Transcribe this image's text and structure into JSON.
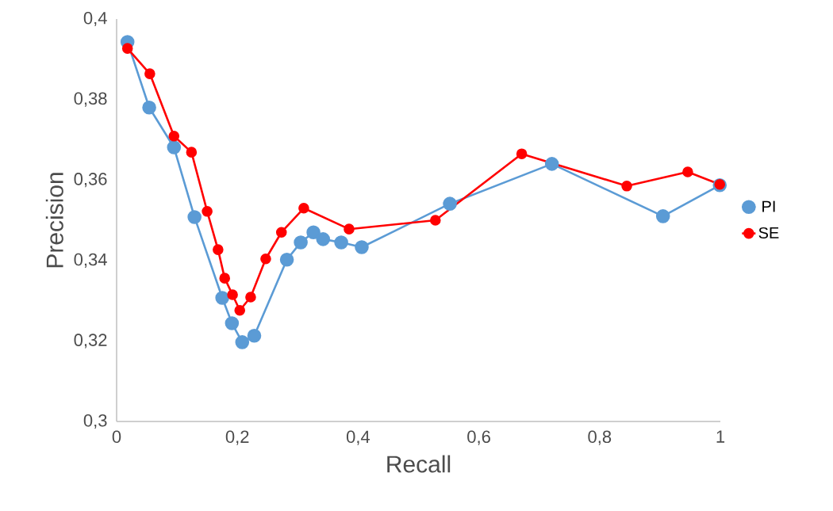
{
  "chart_data": {
    "type": "line",
    "xlabel": "Recall",
    "ylabel": "Precision",
    "xlim": [
      0,
      1
    ],
    "ylim": [
      0.3,
      0.4
    ],
    "xticks": [
      0,
      {
        "value": 0.2,
        "label": "0,2"
      },
      {
        "value": 0.4,
        "label": "0,4"
      },
      {
        "value": 0.6,
        "label": "0,6"
      },
      {
        "value": 0.8,
        "label": "0,8"
      },
      1
    ],
    "yticks": [
      {
        "value": 0.3,
        "label": "0,3"
      },
      {
        "value": 0.32,
        "label": "0,32"
      },
      {
        "value": 0.34,
        "label": "0,34"
      },
      {
        "value": 0.36,
        "label": "0,36"
      },
      {
        "value": 0.38,
        "label": "0,38"
      },
      {
        "value": 0.4,
        "label": "0,4"
      }
    ],
    "grid": false,
    "legend": "right",
    "marker": "circle",
    "line_style": "solid",
    "series": [
      {
        "name": "PI",
        "color": "#5b9bd5",
        "x": [
          0.018,
          0.054,
          0.095,
          0.129,
          0.175,
          0.191,
          0.208,
          0.228,
          0.282,
          0.305,
          0.326,
          0.342,
          0.372,
          0.406,
          0.552,
          0.721,
          0.905,
          0.999
        ],
        "values": [
          0.3943,
          0.378,
          0.3681,
          0.3508,
          0.3307,
          0.3244,
          0.3197,
          0.3213,
          0.3402,
          0.3445,
          0.347,
          0.3453,
          0.3445,
          0.3433,
          0.3541,
          0.364,
          0.351,
          0.3587
        ]
      },
      {
        "name": "SE",
        "color": "#ff0000",
        "x": [
          0.018,
          0.055,
          0.095,
          0.124,
          0.15,
          0.168,
          0.179,
          0.192,
          0.204,
          0.222,
          0.247,
          0.273,
          0.31,
          0.385,
          0.528,
          0.671,
          0.845,
          0.946,
          0.999
        ],
        "values": [
          0.3927,
          0.3864,
          0.3709,
          0.3669,
          0.3522,
          0.3427,
          0.3356,
          0.3315,
          0.3276,
          0.3309,
          0.3404,
          0.347,
          0.353,
          0.3478,
          0.35,
          0.3665,
          0.3585,
          0.362,
          0.3589
        ]
      }
    ]
  }
}
